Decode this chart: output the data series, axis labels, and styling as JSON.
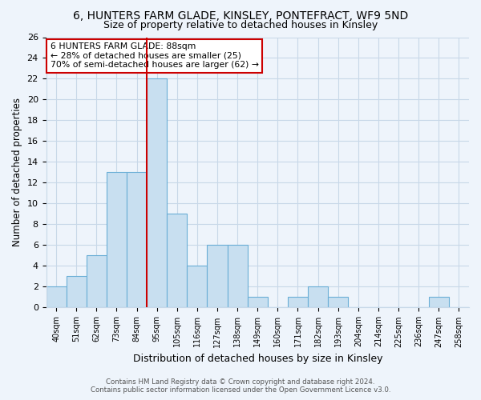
{
  "title": "6, HUNTERS FARM GLADE, KINSLEY, PONTEFRACT, WF9 5ND",
  "subtitle": "Size of property relative to detached houses in Kinsley",
  "xlabel": "Distribution of detached houses by size in Kinsley",
  "ylabel": "Number of detached properties",
  "bar_labels": [
    "40sqm",
    "51sqm",
    "62sqm",
    "73sqm",
    "84sqm",
    "95sqm",
    "105sqm",
    "116sqm",
    "127sqm",
    "138sqm",
    "149sqm",
    "160sqm",
    "171sqm",
    "182sqm",
    "193sqm",
    "204sqm",
    "214sqm",
    "225sqm",
    "236sqm",
    "247sqm",
    "258sqm"
  ],
  "bar_values": [
    2,
    3,
    5,
    13,
    13,
    22,
    9,
    4,
    6,
    6,
    1,
    0,
    1,
    2,
    1,
    0,
    0,
    0,
    0,
    1,
    0
  ],
  "bar_color": "#c8dff0",
  "bar_edge_color": "#6aaed6",
  "vline_color": "#cc0000",
  "annotation_text": "6 HUNTERS FARM GLADE: 88sqm\n← 28% of detached houses are smaller (25)\n70% of semi-detached houses are larger (62) →",
  "annotation_box_color": "#ffffff",
  "annotation_box_edge": "#cc0000",
  "ylim": [
    0,
    26
  ],
  "yticks": [
    0,
    2,
    4,
    6,
    8,
    10,
    12,
    14,
    16,
    18,
    20,
    22,
    24,
    26
  ],
  "footer_line1": "Contains HM Land Registry data © Crown copyright and database right 2024.",
  "footer_line2": "Contains public sector information licensed under the Open Government Licence v3.0.",
  "bg_color": "#eef4fb",
  "grid_color": "#c8d8e8"
}
